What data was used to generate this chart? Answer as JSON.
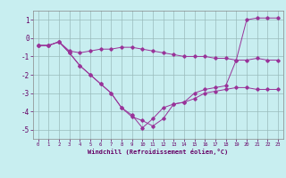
{
  "xlabel": "Windchill (Refroidissement éolien,°C)",
  "bg_color": "#c8eef0",
  "line_color": "#993399",
  "grid_color": "#99bbbb",
  "hours": [
    0,
    1,
    2,
    3,
    4,
    5,
    6,
    7,
    8,
    9,
    10,
    11,
    12,
    13,
    14,
    15,
    16,
    17,
    18,
    19,
    20,
    21,
    22,
    23
  ],
  "line1": [
    -0.4,
    -0.4,
    -0.2,
    -0.7,
    -0.8,
    -0.7,
    -0.6,
    -0.6,
    -0.5,
    -0.5,
    -0.6,
    -0.7,
    -0.8,
    -0.9,
    -1.0,
    -1.0,
    -1.0,
    -1.1,
    -1.1,
    -1.2,
    -1.2,
    -1.1,
    -1.2,
    -1.2
  ],
  "line2": [
    -0.4,
    -0.4,
    -0.2,
    -0.8,
    -1.5,
    -2.0,
    -2.5,
    -3.0,
    -3.8,
    -4.3,
    -4.5,
    -4.8,
    -4.4,
    -3.6,
    -3.5,
    -3.3,
    -3.0,
    -2.9,
    -2.8,
    -2.7,
    -2.7,
    -2.8,
    -2.8,
    -2.8
  ],
  "line3": [
    -0.4,
    -0.4,
    -0.2,
    -0.8,
    -1.5,
    -2.0,
    -2.5,
    -3.0,
    -3.8,
    -4.2,
    -4.9,
    -4.4,
    -3.8,
    -3.6,
    -3.5,
    -3.0,
    -2.8,
    -2.7,
    -2.6,
    -1.2,
    1.0,
    1.1,
    1.1,
    1.1
  ],
  "ylim": [
    -5.5,
    1.5
  ],
  "yticks": [
    -5,
    -4,
    -3,
    -2,
    -1,
    0,
    1
  ],
  "xlim": [
    -0.5,
    23.5
  ]
}
